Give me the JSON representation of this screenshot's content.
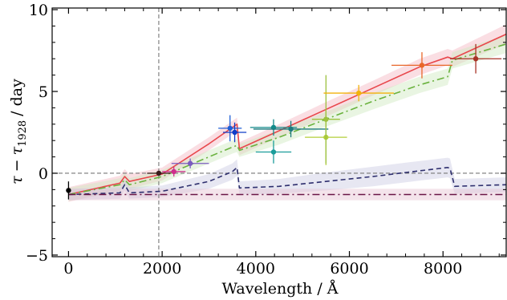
{
  "chart_data": {
    "type": "line",
    "title": "",
    "xlabel": "Wavelength / Å",
    "ylabel_parts": {
      "tau": "τ",
      "minus": "−",
      "tau2": "τ",
      "subscript": "1928",
      "unit": "/ day"
    },
    "xlim": [
      -350,
      9350
    ],
    "ylim": [
      -5.1,
      10.1
    ],
    "x_ticks": [
      0,
      2000,
      4000,
      6000,
      8000
    ],
    "x_tick_labels": [
      "0",
      "2000",
      "4000",
      "6000",
      "8000"
    ],
    "y_ticks": [
      -5,
      0,
      5,
      10
    ],
    "y_tick_labels": [
      "−5",
      "0",
      "5",
      "10"
    ],
    "x_minor_step": 400,
    "y_minor_step": 1,
    "grid": false,
    "reference_lines": {
      "vertical_x": 1928,
      "horizontal_y": 0,
      "color": "#777777"
    },
    "series": [
      {
        "style": "solid",
        "color": "#e8474c",
        "band_color": "#f4b6c2",
        "x": [
          0,
          1100,
          1200,
          1300,
          2000,
          3000,
          3500,
          3600,
          3650,
          4500,
          5500,
          6500,
          7500,
          8100,
          8200,
          9350
        ],
        "y": [
          -1.3,
          -0.6,
          -0.2,
          -0.5,
          -0.05,
          1.8,
          2.8,
          3.0,
          1.5,
          2.6,
          3.9,
          5.2,
          6.5,
          7.1,
          7.0,
          8.5
        ],
        "band": [
          0.45,
          0.45,
          0.45,
          0.45,
          0.4,
          0.4,
          0.4,
          0.4,
          0.4,
          0.4,
          0.45,
          0.45,
          0.5,
          0.5,
          0.5,
          0.6
        ]
      },
      {
        "style": "dashdot",
        "color": "#6ab23e",
        "band_color": "#cfe9be",
        "x": [
          0,
          1100,
          1200,
          1300,
          2000,
          3000,
          3500,
          3600,
          3650,
          4500,
          5500,
          6500,
          7500,
          8100,
          8200,
          9350
        ],
        "y": [
          -1.3,
          -0.7,
          -0.4,
          -0.7,
          -0.2,
          1.0,
          1.6,
          1.7,
          1.4,
          2.2,
          3.3,
          4.4,
          5.4,
          5.9,
          6.9,
          7.9
        ],
        "band": [
          0.4,
          0.4,
          0.4,
          0.4,
          0.4,
          0.4,
          0.4,
          0.4,
          0.4,
          0.45,
          0.45,
          0.5,
          0.5,
          0.5,
          0.5,
          0.55
        ]
      },
      {
        "style": "dashed",
        "color": "#2e2f6e",
        "band_color": "#c9c9e2",
        "x": [
          0,
          1100,
          1200,
          1300,
          2000,
          3000,
          3500,
          3600,
          3650,
          4500,
          5500,
          6500,
          7500,
          8100,
          8150,
          8250,
          9350
        ],
        "y": [
          -1.3,
          -1.2,
          -0.7,
          -1.2,
          -1.1,
          -0.5,
          0.1,
          0.35,
          -0.9,
          -0.8,
          -0.5,
          -0.2,
          0.15,
          0.35,
          0.3,
          -0.8,
          -0.7
        ],
        "band": [
          0.35,
          0.35,
          0.35,
          0.35,
          0.35,
          0.45,
          0.5,
          0.5,
          0.4,
          0.45,
          0.55,
          0.6,
          0.6,
          0.6,
          0.6,
          0.45,
          0.45
        ]
      },
      {
        "style": "dashdot",
        "color": "#6a1646",
        "band_color": "#e6c3d2",
        "x": [
          0,
          9350
        ],
        "y": [
          -1.3,
          -1.3
        ],
        "band": [
          0.35,
          0.35
        ]
      }
    ],
    "points": [
      {
        "x": 0,
        "y": -1.05,
        "xerr": 0,
        "yerr": 0.55,
        "color": "#000000"
      },
      {
        "x": 1928,
        "y": 0.0,
        "xerr": 250,
        "yerr": 0,
        "color": "#3a1a1a"
      },
      {
        "x": 2250,
        "y": 0.1,
        "xerr": 250,
        "yerr": 0.3,
        "color": "#cf2f8c"
      },
      {
        "x": 2600,
        "y": 0.6,
        "xerr": 400,
        "yerr": 0.3,
        "color": "#7a5cbf"
      },
      {
        "x": 3450,
        "y": 2.75,
        "xerr": 250,
        "yerr": 0.8,
        "color": "#1f5ed6"
      },
      {
        "x": 3550,
        "y": 2.5,
        "xerr": 250,
        "yerr": 0.6,
        "color": "#0f3cc8"
      },
      {
        "x": 4380,
        "y": 1.3,
        "xerr": 380,
        "yerr": 0.7,
        "color": "#1a9c9a"
      },
      {
        "x": 4380,
        "y": 2.8,
        "xerr": 500,
        "yerr": 0.5,
        "color": "#118a8a"
      },
      {
        "x": 4750,
        "y": 2.7,
        "xerr": 800,
        "yerr": 0.5,
        "color": "#1d7a7f"
      },
      {
        "x": 5500,
        "y": 2.2,
        "xerr": 450,
        "yerr": 1.7,
        "color": "#b3cf3a"
      },
      {
        "x": 5500,
        "y": 3.3,
        "xerr": 300,
        "yerr": 2.7,
        "color": "#9cc13f"
      },
      {
        "x": 6200,
        "y": 4.9,
        "xerr": 750,
        "yerr": 0.5,
        "color": "#f2b20c"
      },
      {
        "x": 7550,
        "y": 6.6,
        "xerr": 650,
        "yerr": 0.8,
        "color": "#e8672a"
      },
      {
        "x": 8700,
        "y": 7.0,
        "xerr": 550,
        "yerr": 0.9,
        "color": "#a83226"
      }
    ]
  }
}
